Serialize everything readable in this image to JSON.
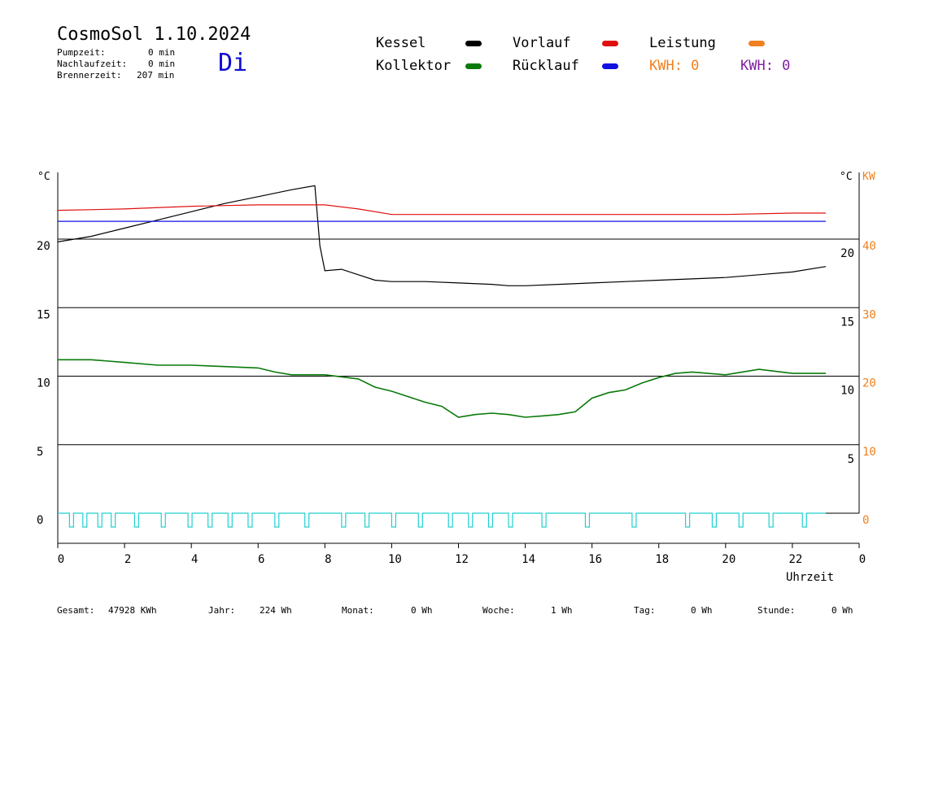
{
  "header": {
    "title": "CosmoSol 1.10.2024",
    "day": "Di",
    "stats": [
      {
        "label": "Pumpzeit:",
        "value": "0 min"
      },
      {
        "label": "Nachlaufzeit:",
        "value": "0 min"
      },
      {
        "label": "Brennerzeit:",
        "value": "207 min"
      }
    ]
  },
  "legend": {
    "kessel": "Kessel",
    "kollektor": "Kollektor",
    "vorlauf": "Vorlauf",
    "ruecklauf": "Rücklauf",
    "leistung": "Leistung",
    "kwh1": "KWH: 0",
    "kwh2": "KWH: 0"
  },
  "colors": {
    "kessel": "#000000",
    "kollektor": "#0a7a0a",
    "vorlauf": "#e01010",
    "ruecklauf": "#1010e0",
    "leistung": "#f08020",
    "kwh_purple": "#8020a0",
    "pump": "#20d0d0"
  },
  "axes": {
    "left_unit": "°C",
    "right_unit": "°C",
    "right_power_unit": "KW",
    "xlabel": "Uhrzeit",
    "x_ticks": [
      "0",
      "2",
      "4",
      "6",
      "8",
      "10",
      "12",
      "14",
      "16",
      "18",
      "20",
      "22",
      "0"
    ],
    "left_ticks": [
      "20",
      "15",
      "10",
      "5",
      "0"
    ],
    "right_temp_ticks": [
      "20",
      "15",
      "10",
      "5"
    ],
    "right_power_ticks": [
      "40",
      "30",
      "20",
      "10",
      "0"
    ]
  },
  "chart_data": {
    "type": "line",
    "x_unit": "hour",
    "xlim": [
      0,
      24
    ],
    "ylim": [
      -2,
      25
    ],
    "grid_y": [
      0,
      5,
      10,
      15,
      20
    ],
    "series": [
      {
        "name": "Kessel",
        "x": [
          0,
          1,
          2,
          3,
          4,
          5,
          6,
          7,
          7.7,
          7.85,
          8,
          8.5,
          9,
          9.5,
          10,
          11,
          12,
          13,
          13.5,
          14,
          15,
          16,
          17,
          18,
          19,
          20,
          21,
          22,
          23
        ],
        "y": [
          19.8,
          20.2,
          20.8,
          21.4,
          22.0,
          22.6,
          23.1,
          23.6,
          23.9,
          19.5,
          17.7,
          17.8,
          17.4,
          17.0,
          16.9,
          16.9,
          16.8,
          16.7,
          16.6,
          16.6,
          16.7,
          16.8,
          16.9,
          17.0,
          17.1,
          17.2,
          17.4,
          17.6,
          18.0
        ]
      },
      {
        "name": "Kollektor",
        "x": [
          0,
          1,
          2,
          3,
          4,
          5,
          6,
          6.5,
          7,
          8,
          9,
          9.5,
          10,
          10.5,
          11,
          11.5,
          12,
          12.5,
          13,
          13.5,
          14,
          14.5,
          15,
          15.5,
          16,
          16.5,
          17,
          17.5,
          18,
          18.5,
          19,
          20,
          20.5,
          21,
          22,
          23
        ],
        "y": [
          11.2,
          11.2,
          11.0,
          10.8,
          10.8,
          10.7,
          10.6,
          10.3,
          10.1,
          10.1,
          9.8,
          9.2,
          8.9,
          8.5,
          8.1,
          7.8,
          7.0,
          7.2,
          7.3,
          7.2,
          7.0,
          7.1,
          7.2,
          7.4,
          8.4,
          8.8,
          9.0,
          9.5,
          9.9,
          10.2,
          10.3,
          10.1,
          10.3,
          10.5,
          10.2,
          10.2
        ]
      },
      {
        "name": "Vorlauf",
        "x": [
          0,
          2,
          4,
          6,
          7,
          8,
          9,
          10,
          12,
          14,
          16,
          18,
          20,
          22,
          23
        ],
        "y": [
          22.1,
          22.2,
          22.4,
          22.5,
          22.5,
          22.5,
          22.2,
          21.8,
          21.8,
          21.8,
          21.8,
          21.8,
          21.8,
          21.9,
          21.9
        ]
      },
      {
        "name": "Rücklauf",
        "x": [
          0,
          23
        ],
        "y": [
          21.3,
          21.3
        ]
      }
    ],
    "pump_on_hours": [
      0.35,
      0.75,
      1.2,
      1.6,
      2.3,
      3.1,
      3.9,
      4.5,
      5.1,
      5.7,
      6.5,
      7.4,
      8.5,
      9.2,
      10.0,
      10.8,
      11.7,
      12.3,
      12.9,
      13.5,
      14.5,
      15.8,
      17.2,
      18.8,
      19.6,
      20.4,
      21.3,
      22.3
    ]
  },
  "footer": [
    {
      "label": "Gesamt:",
      "value": "47928 KWh"
    },
    {
      "label": "Jahr:",
      "value": "224 Wh"
    },
    {
      "label": "Monat:",
      "value": "0 Wh"
    },
    {
      "label": "Woche:",
      "value": "1 Wh"
    },
    {
      "label": "Tag:",
      "value": "0 Wh"
    },
    {
      "label": "Stunde:",
      "value": "0 Wh"
    }
  ]
}
